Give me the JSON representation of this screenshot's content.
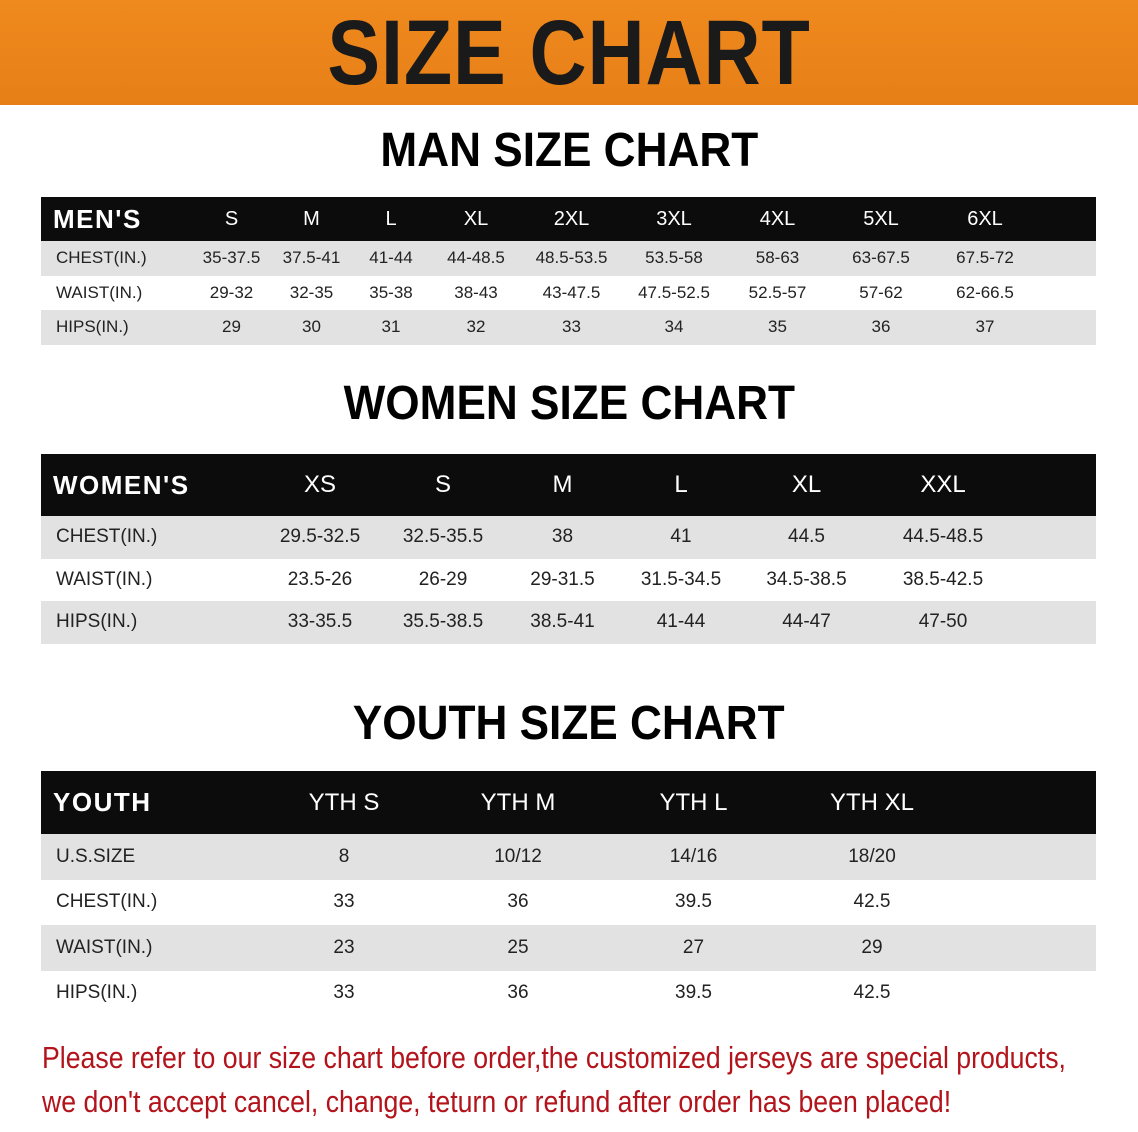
{
  "banner": {
    "title": "SIZE CHART",
    "color": "#ef8a1e"
  },
  "men": {
    "title": "MAN SIZE CHART",
    "headers": [
      "MEN'S",
      "S",
      "M",
      "L",
      "XL",
      "2XL",
      "3XL",
      "4XL",
      "5XL",
      "6XL"
    ],
    "rows": [
      [
        "CHEST(IN.)",
        "35-37.5",
        "37.5-41",
        "41-44",
        "44-48.5",
        "48.5-53.5",
        "53.5-58",
        "58-63",
        "63-67.5",
        "67.5-72"
      ],
      [
        "WAIST(IN.)",
        "29-32",
        "32-35",
        "35-38",
        "38-43",
        "43-47.5",
        "47.5-52.5",
        "52.5-57",
        "57-62",
        "62-66.5"
      ],
      [
        "HIPS(IN.)",
        "29",
        "30",
        "31",
        "32",
        "33",
        "34",
        "35",
        "36",
        "37"
      ]
    ]
  },
  "women": {
    "title": "WOMEN SIZE CHART",
    "headers": [
      "WOMEN'S",
      "XS",
      "S",
      "M",
      "L",
      "XL",
      "XXL"
    ],
    "rows": [
      [
        "CHEST(IN.)",
        "29.5-32.5",
        "32.5-35.5",
        "38",
        "41",
        "44.5",
        "44.5-48.5"
      ],
      [
        "WAIST(IN.)",
        "23.5-26",
        "26-29",
        "29-31.5",
        "31.5-34.5",
        "34.5-38.5",
        "38.5-42.5"
      ],
      [
        "HIPS(IN.)",
        "33-35.5",
        "35.5-38.5",
        "38.5-41",
        "41-44",
        "44-47",
        "47-50"
      ]
    ]
  },
  "youth": {
    "title": "YOUTH SIZE CHART",
    "headers": [
      "YOUTH",
      "YTH S",
      "YTH M",
      "YTH L",
      "YTH XL"
    ],
    "rows": [
      [
        "U.S.SIZE",
        "8",
        "10/12",
        "14/16",
        "18/20"
      ],
      [
        "CHEST(IN.)",
        "33",
        "36",
        "39.5",
        "42.5"
      ],
      [
        "WAIST(IN.)",
        "23",
        "25",
        "27",
        "29"
      ],
      [
        "HIPS(IN.)",
        "33",
        "36",
        "39.5",
        "42.5"
      ]
    ]
  },
  "note": {
    "line1": "Please refer to our size chart before order,the customized jerseys are special products,",
    "line2": "we don't accept cancel, change, teturn or refund after order has been placed!",
    "color": "#b3141c"
  }
}
